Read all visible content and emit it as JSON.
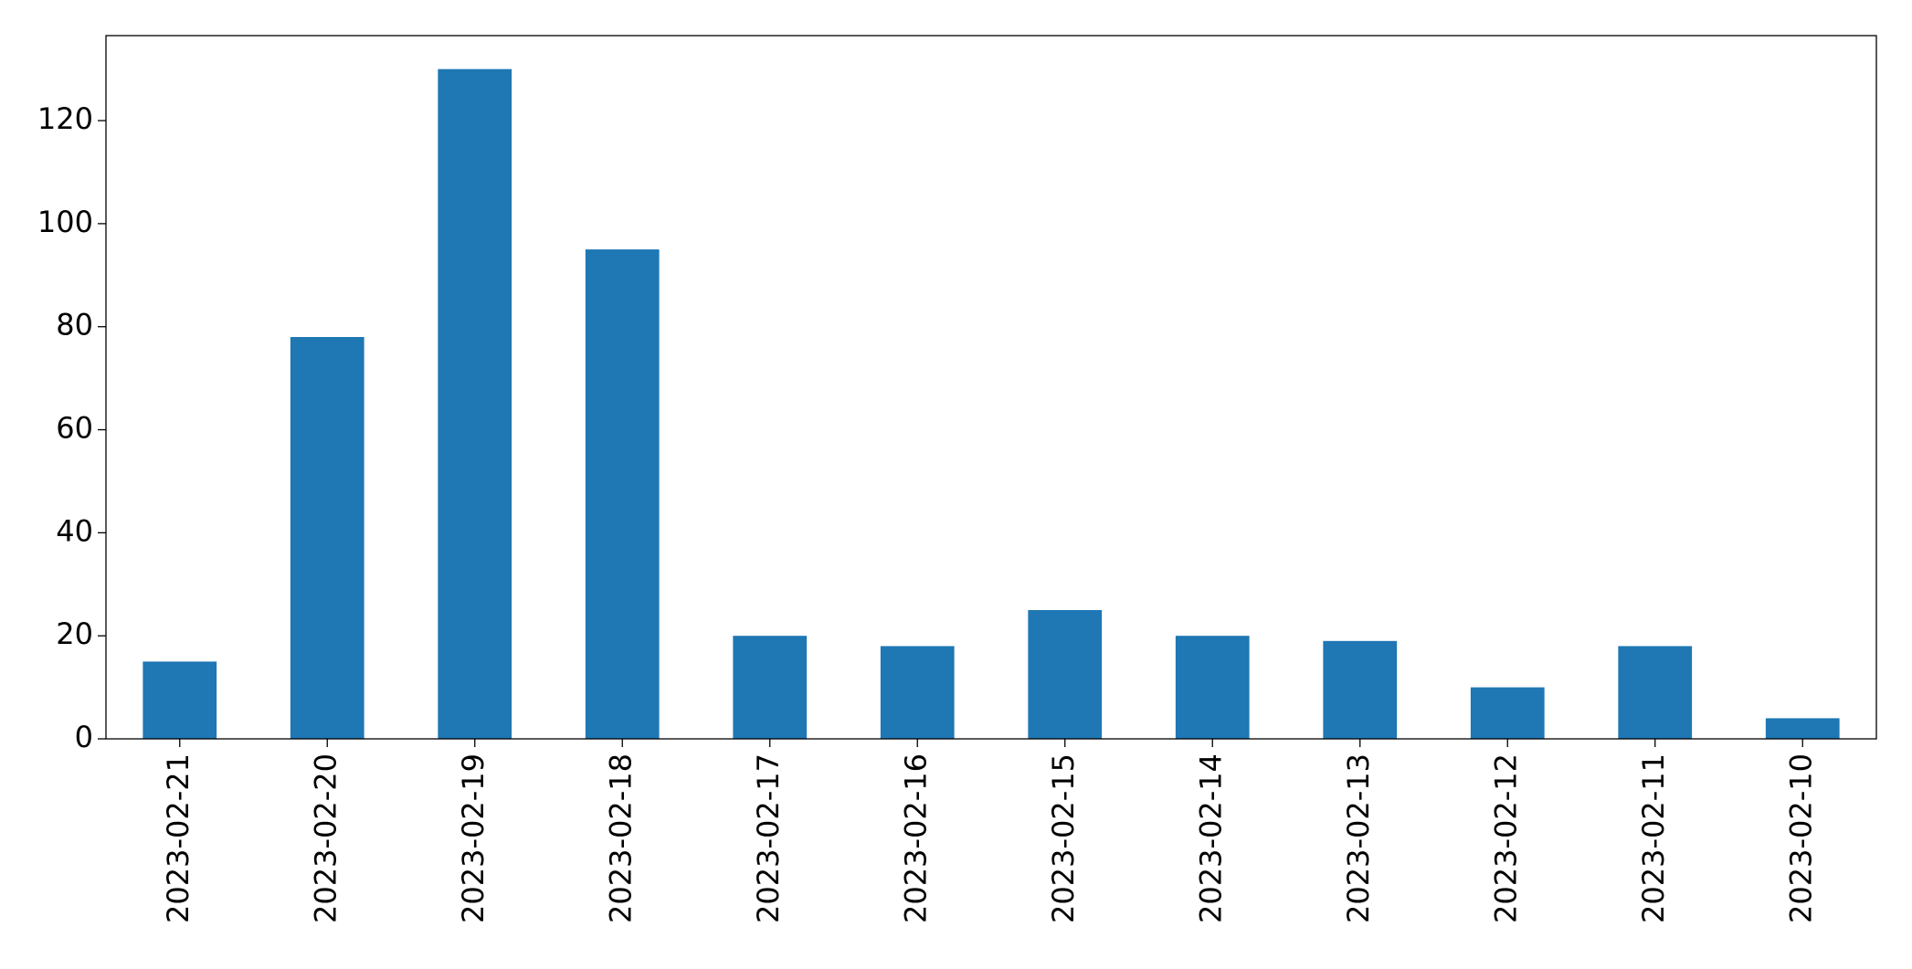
{
  "chart_data": {
    "type": "bar",
    "categories": [
      "2023-02-21",
      "2023-02-20",
      "2023-02-19",
      "2023-02-18",
      "2023-02-17",
      "2023-02-16",
      "2023-02-15",
      "2023-02-14",
      "2023-02-13",
      "2023-02-12",
      "2023-02-11",
      "2023-02-10"
    ],
    "values": [
      15,
      78,
      130,
      95,
      20,
      18,
      25,
      20,
      19,
      10,
      18,
      4
    ],
    "color": "#1f77b4",
    "ylim": [
      0,
      136.5
    ],
    "yticks": [
      0,
      20,
      40,
      60,
      80,
      100,
      120
    ],
    "grid": false
  }
}
